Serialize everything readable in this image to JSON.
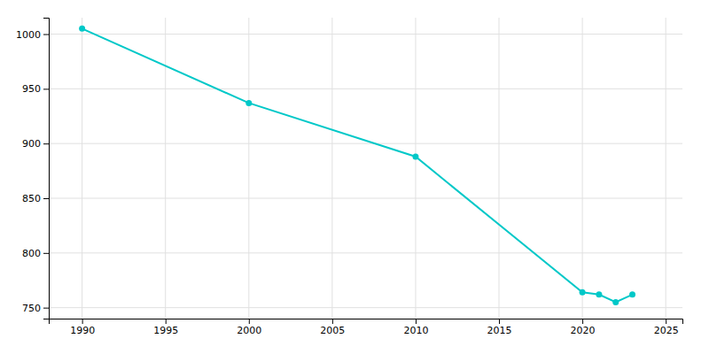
{
  "chart_data": {
    "type": "line",
    "x": [
      1990,
      2000,
      2010,
      2020,
      2021,
      2022,
      2023
    ],
    "values": [
      1005,
      937,
      888,
      764,
      762,
      755,
      762
    ],
    "color": "#00c8c8",
    "marker": "circle",
    "xlim": [
      1988,
      2026
    ],
    "ylim": [
      740,
      1015
    ],
    "xticks": [
      1990,
      1995,
      2000,
      2005,
      2010,
      2015,
      2020,
      2025
    ],
    "yticks": [
      750,
      800,
      850,
      900,
      950,
      1000
    ],
    "grid": true
  }
}
